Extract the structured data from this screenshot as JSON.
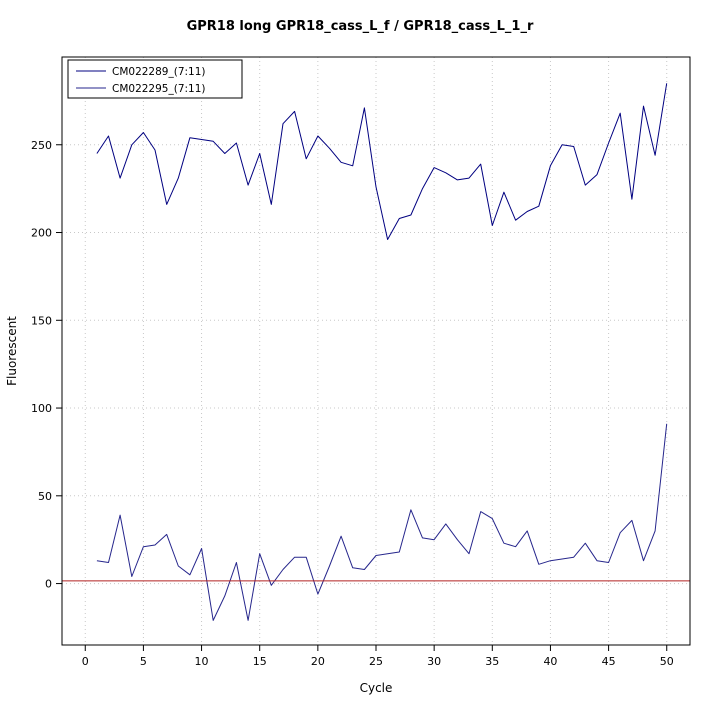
{
  "chart_data": {
    "type": "line",
    "title": "GPR18 long GPR18_cass_L_f / GPR18_cass_L_1_r",
    "xlabel": "Cycle",
    "ylabel": "Fluorescent",
    "xlim": [
      -2,
      52
    ],
    "ylim": [
      -35,
      300
    ],
    "x_ticks": [
      0,
      5,
      10,
      15,
      20,
      25,
      30,
      35,
      40,
      45,
      50
    ],
    "y_ticks": [
      0,
      50,
      100,
      150,
      200,
      250
    ],
    "grid": true,
    "grid_style": "dotted",
    "grid_color": "#c8c8c8",
    "legend_position": "top-left",
    "threshold_line": {
      "y": 1.5,
      "color": "#b22222"
    },
    "x": [
      1,
      2,
      3,
      4,
      5,
      6,
      7,
      8,
      9,
      10,
      11,
      12,
      13,
      14,
      15,
      16,
      17,
      18,
      19,
      20,
      21,
      22,
      23,
      24,
      25,
      26,
      27,
      28,
      29,
      30,
      31,
      32,
      33,
      34,
      35,
      36,
      37,
      38,
      39,
      40,
      41,
      42,
      43,
      44,
      45,
      46,
      47,
      48,
      49,
      50
    ],
    "series": [
      {
        "name": "CM022289_(7:11)",
        "color": "#000080",
        "values": [
          245,
          255,
          231,
          250,
          257,
          247,
          216,
          231,
          254,
          253,
          252,
          245,
          251,
          227,
          245,
          216,
          262,
          269,
          242,
          255,
          248,
          240,
          238,
          271,
          226,
          196,
          208,
          210,
          225,
          237,
          234,
          230,
          231,
          239,
          204,
          223,
          207,
          212,
          215,
          238,
          250,
          249,
          227,
          233,
          251,
          268,
          219,
          272,
          244,
          285
        ]
      },
      {
        "name": "CM022295_(7:11)",
        "color": "#26268c",
        "values": [
          13,
          12,
          39,
          4,
          21,
          22,
          28,
          10,
          5,
          20,
          -21,
          -7,
          12,
          -21,
          17,
          -1,
          8,
          15,
          15,
          -6,
          10,
          27,
          9,
          8,
          16,
          17,
          18,
          42,
          26,
          25,
          34,
          25,
          17,
          41,
          37,
          23,
          21,
          30,
          11,
          13,
          14,
          15,
          23,
          13,
          12,
          29,
          36,
          13,
          30,
          91
        ]
      }
    ]
  }
}
